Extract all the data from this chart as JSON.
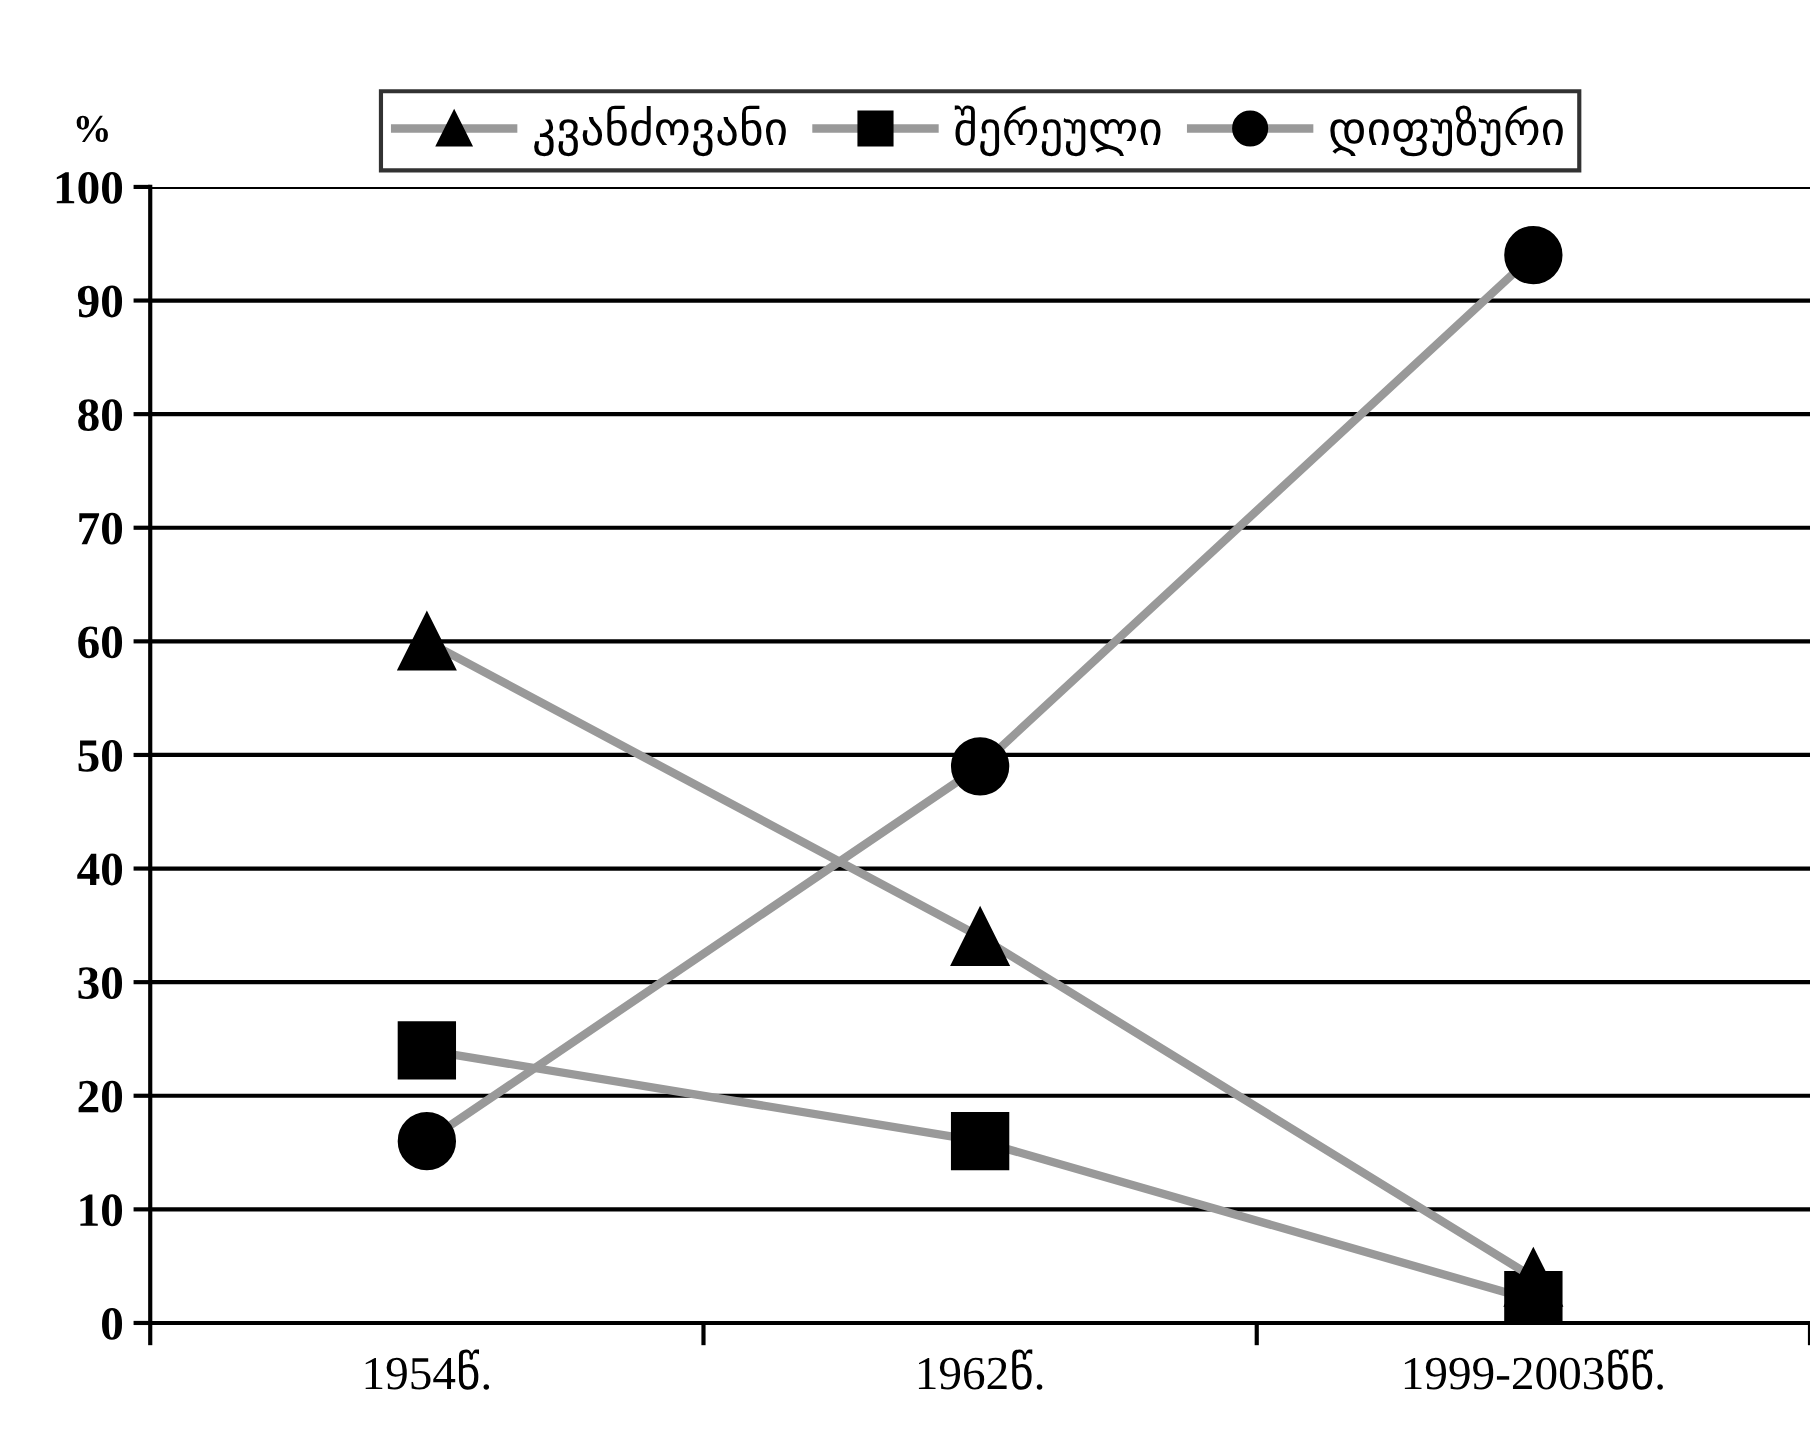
{
  "chart_data": {
    "type": "line",
    "ylabel": "%",
    "categories": [
      "1954წ.",
      "1962წ.",
      "1999-2003წწ."
    ],
    "series": [
      {
        "name": "კვანძოვანი",
        "color": "#999999",
        "marker": "triangle",
        "values": [
          60,
          34,
          4
        ]
      },
      {
        "name": "შერეული",
        "color": "#999999",
        "marker": "square",
        "values": [
          24,
          16,
          2
        ]
      },
      {
        "name": "დიფუზური",
        "color": "#999999",
        "marker": "circle",
        "values": [
          16,
          49,
          94
        ]
      }
    ],
    "ylim": [
      0,
      100
    ],
    "yticks": [
      0,
      10,
      20,
      30,
      40,
      50,
      60,
      70,
      80,
      90,
      100
    ],
    "grid": "y",
    "legend": "top",
    "line_style": "solid"
  }
}
